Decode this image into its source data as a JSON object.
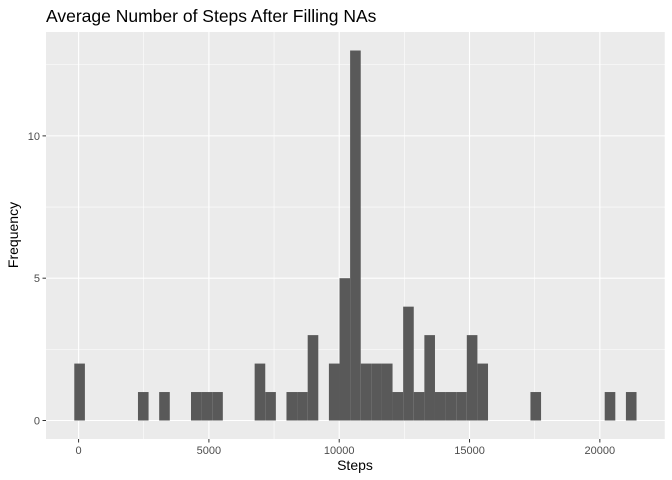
{
  "chart_data": {
    "type": "bar",
    "title": "Average Number of Steps After Filling NAs",
    "xlabel": "Steps",
    "ylabel": "Frequency",
    "xlim": [
      -1250,
      22500
    ],
    "ylim": [
      -0.65,
      13.65
    ],
    "x_ticks": [
      0,
      5000,
      10000,
      15000,
      20000
    ],
    "x_tick_labels": [
      "0",
      "5000",
      "10000",
      "15000",
      "20000"
    ],
    "y_ticks": [
      0,
      5,
      10
    ],
    "y_tick_labels": [
      "0",
      "5",
      "10"
    ],
    "bin_width": 407,
    "bins": [
      {
        "x": 39,
        "count": 2
      },
      {
        "x": 2482,
        "count": 1
      },
      {
        "x": 3296,
        "count": 1
      },
      {
        "x": 4517,
        "count": 1
      },
      {
        "x": 4924,
        "count": 1
      },
      {
        "x": 5331,
        "count": 1
      },
      {
        "x": 6959,
        "count": 2
      },
      {
        "x": 7366,
        "count": 1
      },
      {
        "x": 8180,
        "count": 1
      },
      {
        "x": 8587,
        "count": 1
      },
      {
        "x": 8994,
        "count": 3
      },
      {
        "x": 9808,
        "count": 2
      },
      {
        "x": 10215,
        "count": 5
      },
      {
        "x": 10622,
        "count": 13
      },
      {
        "x": 11029,
        "count": 2
      },
      {
        "x": 11436,
        "count": 2
      },
      {
        "x": 11843,
        "count": 2
      },
      {
        "x": 12250,
        "count": 1
      },
      {
        "x": 12657,
        "count": 4
      },
      {
        "x": 13064,
        "count": 1
      },
      {
        "x": 13471,
        "count": 3
      },
      {
        "x": 13878,
        "count": 1
      },
      {
        "x": 14285,
        "count": 1
      },
      {
        "x": 14692,
        "count": 1
      },
      {
        "x": 15099,
        "count": 3
      },
      {
        "x": 15506,
        "count": 2
      },
      {
        "x": 17541,
        "count": 1
      },
      {
        "x": 20390,
        "count": 1
      },
      {
        "x": 21204,
        "count": 1
      }
    ],
    "grid": true,
    "colors": {
      "panel_background": "#EBEBEB",
      "grid_major": "#FFFFFF",
      "bar_fill": "#595959",
      "axis_text": "#4D4D4D",
      "title_text": "#000000"
    }
  }
}
